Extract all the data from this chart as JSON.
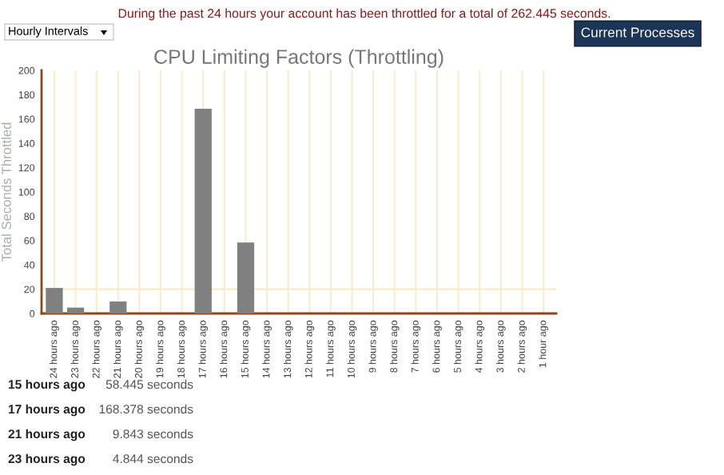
{
  "chart_data": {
    "type": "bar",
    "title": "CPU Limiting Factors (Throttling)",
    "ylabel": "Total Seconds Throttled",
    "categories": [
      "24 hours ago",
      "23 hours ago",
      "22 hours ago",
      "21 hours ago",
      "20 hours ago",
      "19 hours ago",
      "18 hours ago",
      "17 hours ago",
      "16 hours ago",
      "15 hours ago",
      "14 hours ago",
      "13 hours ago",
      "12 hours ago",
      "11 hours ago",
      "10 hours ago",
      "9 hours ago",
      "8 hours ago",
      "7 hours ago",
      "6 hours ago",
      "5 hours ago",
      "4 hours ago",
      "3 hours ago",
      "2 hours ago",
      "1 hour ago"
    ],
    "values": [
      21,
      4.844,
      0,
      9.843,
      0,
      0,
      0,
      168.378,
      0,
      58.445,
      0,
      0,
      0,
      0,
      0,
      0,
      0,
      0,
      0,
      0,
      0,
      0,
      0,
      0
    ],
    "color": "#808080",
    "ylim": [
      0,
      200
    ],
    "yticks": [
      0,
      20,
      40,
      60,
      80,
      100,
      120,
      140,
      160,
      180,
      200
    ],
    "grid": "x",
    "ref_lines": [
      {
        "axis": "y",
        "value": 20,
        "color": "#f8ecc8"
      }
    ],
    "annotations": [
      "During the past 24 hours your account has been throttled for a total of 262.445 seconds.",
      "Hourly Intervals",
      "Current Processes",
      "15 hours ago",
      "58.445 seconds",
      "17 hours ago",
      "168.378 seconds",
      "21 hours ago",
      "9.843 seconds",
      "23 hours ago",
      "4.844 seconds"
    ]
  }
}
